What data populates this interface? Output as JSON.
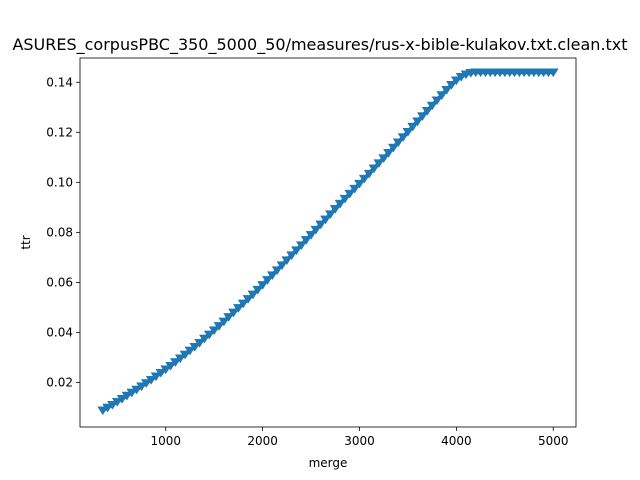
{
  "chart_data": {
    "type": "line",
    "title": "ASURES_corpusPBC_350_5000_50/measures/rus-x-bible-kulakov.txt.clean.txt",
    "xlabel": "merge",
    "ylabel": "ttr",
    "xlim": [
      115,
      5235
    ],
    "ylim": [
      0.0022,
      0.1497
    ],
    "xticks": [
      1000,
      2000,
      3000,
      4000,
      5000
    ],
    "xtick_labels": [
      "1000",
      "2000",
      "3000",
      "4000",
      "5000"
    ],
    "yticks": [
      0.02,
      0.04,
      0.06,
      0.08,
      0.1,
      0.12,
      0.14
    ],
    "ytick_labels": [
      "0.02",
      "0.04",
      "0.06",
      "0.08",
      "0.10",
      "0.12",
      "0.14"
    ],
    "grid": false,
    "marker": "triangle_down",
    "series": [
      {
        "name": "ttr",
        "color": "#1f77b4",
        "x": [
          350,
          400,
          450,
          500,
          550,
          600,
          650,
          700,
          750,
          800,
          850,
          900,
          950,
          1000,
          1050,
          1100,
          1150,
          1200,
          1250,
          1300,
          1350,
          1400,
          1450,
          1500,
          1550,
          1600,
          1650,
          1700,
          1750,
          1800,
          1850,
          1900,
          1950,
          2000,
          2050,
          2100,
          2150,
          2200,
          2250,
          2300,
          2350,
          2400,
          2450,
          2500,
          2550,
          2600,
          2650,
          2700,
          2750,
          2800,
          2850,
          2900,
          2950,
          3000,
          3050,
          3100,
          3150,
          3200,
          3250,
          3300,
          3350,
          3400,
          3450,
          3500,
          3550,
          3600,
          3650,
          3700,
          3750,
          3800,
          3850,
          3900,
          3950,
          4000,
          4050,
          4100,
          4150,
          4200,
          4250,
          4300,
          4350,
          4400,
          4450,
          4500,
          4550,
          4600,
          4650,
          4700,
          4750,
          4800,
          4850,
          4900,
          4950,
          5000
        ],
        "y": [
          0.0089,
          0.01,
          0.0111,
          0.0123,
          0.0135,
          0.0148,
          0.016,
          0.0172,
          0.0185,
          0.0198,
          0.0211,
          0.0225,
          0.0239,
          0.0253,
          0.0267,
          0.0282,
          0.0297,
          0.0312,
          0.0328,
          0.0343,
          0.0359,
          0.0376,
          0.0392,
          0.0409,
          0.0426,
          0.0444,
          0.0462,
          0.048,
          0.0498,
          0.0516,
          0.0534,
          0.0552,
          0.0571,
          0.059,
          0.061,
          0.0629,
          0.0649,
          0.0669,
          0.0689,
          0.0709,
          0.0729,
          0.0749,
          0.077,
          0.079,
          0.0811,
          0.0832,
          0.0852,
          0.0873,
          0.0894,
          0.0915,
          0.0935,
          0.0955,
          0.0975,
          0.0995,
          0.1015,
          0.1035,
          0.1056,
          0.1077,
          0.1097,
          0.1118,
          0.1139,
          0.116,
          0.1181,
          0.1202,
          0.1223,
          0.1244,
          0.1265,
          0.1286,
          0.1307,
          0.1328,
          0.1349,
          0.137,
          0.139,
          0.1408,
          0.1422,
          0.1432,
          0.1438,
          0.144,
          0.144,
          0.144,
          0.144,
          0.144,
          0.144,
          0.144,
          0.144,
          0.144,
          0.144,
          0.144,
          0.144,
          0.144,
          0.144,
          0.144,
          0.144,
          0.144
        ]
      }
    ]
  }
}
